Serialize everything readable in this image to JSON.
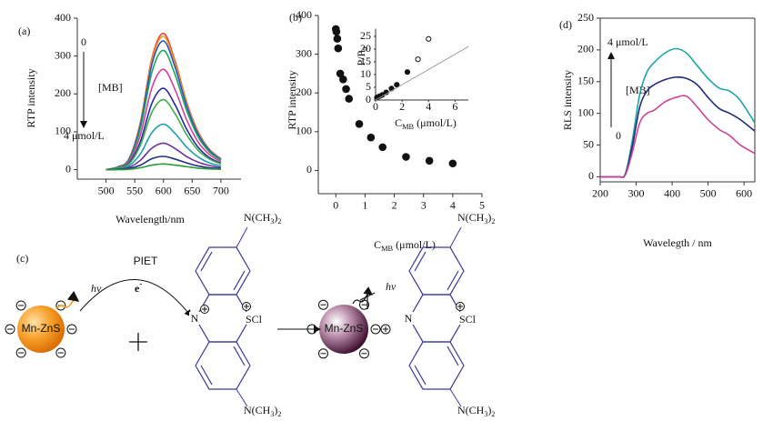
{
  "chart_data": [
    {
      "label": "(a)",
      "type": "line",
      "x": [
        500,
        520,
        540,
        560,
        580,
        600,
        620,
        640,
        660,
        680,
        700
      ],
      "series": [
        {
          "color": "#e8432a",
          "values": [
            0,
            7,
            29,
            126,
            295,
            360,
            288,
            180,
            101,
            54,
            29
          ]
        },
        {
          "color": "#f39a1e",
          "values": [
            0,
            7,
            28,
            123,
            289,
            352,
            282,
            176,
            99,
            53,
            28
          ]
        },
        {
          "color": "#2455c9",
          "values": [
            0,
            7,
            27,
            119,
            279,
            340,
            272,
            170,
            95,
            51,
            27
          ]
        },
        {
          "color": "#1aa35a",
          "values": [
            0,
            6,
            25,
            110,
            258,
            315,
            252,
            158,
            88,
            47,
            25
          ]
        },
        {
          "color": "#d23fa0",
          "values": [
            0,
            5,
            21,
            93,
            217,
            265,
            212,
            133,
            74,
            40,
            21
          ]
        },
        {
          "color": "#2a2aa0",
          "values": [
            0,
            4,
            17,
            75,
            176,
            215,
            172,
            108,
            60,
            32,
            17
          ]
        },
        {
          "color": "#3cb04a",
          "values": [
            0,
            4,
            15,
            65,
            152,
            185,
            148,
            93,
            52,
            28,
            15
          ]
        },
        {
          "color": "#1aa0b0",
          "values": [
            0,
            2,
            10,
            42,
            98,
            120,
            96,
            60,
            34,
            18,
            10
          ]
        },
        {
          "color": "#7030a0",
          "values": [
            0,
            1,
            6,
            25,
            57,
            70,
            56,
            35,
            20,
            11,
            6
          ]
        },
        {
          "color": "#203080",
          "values": [
            0,
            1,
            3,
            12,
            29,
            35,
            28,
            18,
            10,
            5,
            3
          ]
        },
        {
          "color": "#2a9a3a",
          "values": [
            0,
            0,
            1,
            5,
            12,
            15,
            12,
            8,
            4,
            2,
            1
          ]
        }
      ],
      "xlim": [
        450,
        735
      ],
      "xticks": [
        500,
        550,
        600,
        650,
        700
      ],
      "ylim": [
        -25,
        400
      ],
      "yticks": [
        0,
        100,
        200,
        300,
        400
      ],
      "x_label": "Wavelength/nm",
      "y_label": "RTP intensity",
      "annotations": [
        "0",
        "[MB]",
        "4 μmol/L"
      ]
    },
    {
      "label": "(b)",
      "type": "scatter",
      "x": [
        0,
        0.02,
        0.05,
        0.08,
        0.15,
        0.25,
        0.35,
        0.45,
        0.8,
        1.2,
        1.6,
        2.4,
        3.2,
        4
      ],
      "values": [
        365,
        358,
        340,
        315,
        250,
        235,
        210,
        185,
        120,
        85,
        60,
        35,
        25,
        18
      ],
      "color": "#111111",
      "xlim": [
        -0.6,
        5
      ],
      "xticks": [
        0,
        1,
        2,
        3,
        4,
        5
      ],
      "ylim": [
        -60,
        400
      ],
      "yticks": [
        0,
        100,
        200,
        300,
        400
      ],
      "x_label": {
        "main": "C",
        "sub": "MB",
        "rest": " (μmol/L)"
      },
      "y_label": "RTP intensity",
      "inset": {
        "type": "scatter",
        "series": [
          {
            "marker": "filled",
            "color": "#111111",
            "x": [
              0.1,
              0.3,
              0.5,
              0.8,
              1.2,
              1.6,
              2.4
            ],
            "values": [
              1,
              1.5,
              2,
              3,
              4.5,
              6,
              11
            ]
          },
          {
            "marker": "open",
            "color": "#111111",
            "x": [
              3.2,
              4
            ],
            "values": [
              16,
              24
            ]
          },
          {
            "marker": "line",
            "color": "#999999",
            "x": [
              0,
              7
            ],
            "values": [
              0,
              21
            ]
          }
        ],
        "xlim": [
          0,
          7
        ],
        "xticks": [
          0,
          2,
          4,
          6
        ],
        "ylim": [
          0,
          28
        ],
        "yticks": [
          0,
          5,
          10,
          15,
          20,
          25
        ],
        "x_label": {
          "main": "C",
          "sub": "MB",
          "rest": " (μmol/L)"
        },
        "y_label": {
          "main": "P/P",
          "sub": "0"
        }
      }
    },
    {
      "label": "(d)",
      "type": "line",
      "frame": true,
      "x": [
        200,
        250,
        270,
        290,
        310,
        330,
        350,
        380,
        410,
        440,
        470,
        500,
        530,
        560,
        590,
        630
      ],
      "series": [
        {
          "color": "#1aa6a6",
          "values": [
            0,
            0,
            5,
            60,
            130,
            165,
            180,
            195,
            202,
            195,
            175,
            155,
            140,
            135,
            120,
            85
          ]
        },
        {
          "color": "#24287a",
          "values": [
            0,
            0,
            4,
            50,
            110,
            135,
            145,
            153,
            157,
            155,
            145,
            125,
            108,
            100,
            90,
            72
          ]
        },
        {
          "color": "#c9449a",
          "values": [
            0,
            0,
            3,
            40,
            85,
            100,
            105,
            118,
            125,
            127,
            110,
            90,
            75,
            65,
            50,
            37
          ]
        }
      ],
      "xlim": [
        200,
        630
      ],
      "xticks": [
        200,
        300,
        400,
        500,
        600
      ],
      "ylim": [
        -8,
        250
      ],
      "yticks": [
        0,
        50,
        100,
        150,
        200,
        250
      ],
      "x_label": "Wavelegth / nm",
      "y_label": "RLS intensity",
      "annotations": [
        "4 μmol/L",
        "[MB]",
        "0"
      ]
    }
  ],
  "diagram": {
    "label": "(c)",
    "donor": {
      "label": "Mn-ZnS",
      "emission": "hv"
    },
    "process": "PIET",
    "electron": {
      "symbol": "e",
      "charge": "-"
    },
    "molecule": {
      "amine": [
        "N(CH",
        "3",
        ")",
        "2"
      ],
      "ring_n": "N",
      "ring_s": "SCl"
    },
    "product": {
      "label": "Mn-ZnS",
      "emission": "hv"
    }
  }
}
